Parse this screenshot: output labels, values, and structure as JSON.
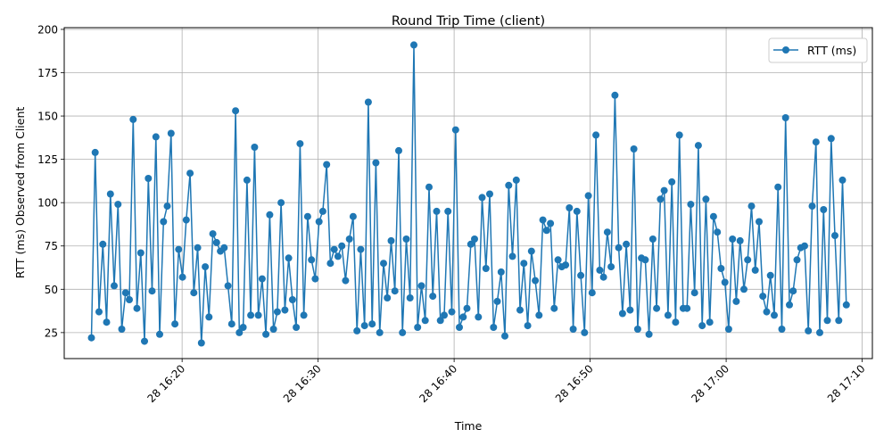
{
  "chart_data": {
    "type": "line",
    "title": "Round Trip Time (client)",
    "xlabel": "Time",
    "ylabel": "RTT (ms) Observed from Client",
    "grid": true,
    "legend_position": "top-right",
    "x_start": "28 16:13:20",
    "x_end": "28 17:08:50",
    "xlim": [
      "28 16:11:20",
      "28 17:10:45"
    ],
    "ylim": [
      10,
      201
    ],
    "x_ticks": [
      "28 16:20",
      "28 16:30",
      "28 16:40",
      "28 16:50",
      "28 17:00",
      "28 17:10"
    ],
    "y_ticks": [
      25,
      50,
      75,
      100,
      125,
      150,
      175,
      200
    ],
    "series": [
      {
        "name": "RTT (ms)",
        "color": "#1f77b4",
        "marker": "circle",
        "values": [
          22,
          129,
          37,
          76,
          31,
          105,
          52,
          99,
          27,
          48,
          44,
          148,
          39,
          71,
          20,
          114,
          49,
          138,
          24,
          89,
          98,
          140,
          30,
          73,
          57,
          90,
          117,
          48,
          74,
          19,
          63,
          34,
          82,
          77,
          72,
          74,
          52,
          30,
          153,
          25,
          28,
          113,
          35,
          132,
          35,
          56,
          24,
          93,
          27,
          37,
          100,
          38,
          68,
          44,
          28,
          134,
          35,
          92,
          67,
          56,
          89,
          95,
          122,
          65,
          73,
          69,
          75,
          55,
          79,
          92,
          26,
          73,
          29,
          158,
          30,
          123,
          25,
          65,
          45,
          78,
          49,
          130,
          25,
          79,
          45,
          191,
          28,
          52,
          32,
          109,
          46,
          95,
          32,
          35,
          95,
          37,
          142,
          28,
          34,
          39,
          76,
          79,
          34,
          103,
          62,
          105,
          28,
          43,
          60,
          23,
          110,
          69,
          113,
          38,
          65,
          29,
          72,
          55,
          35,
          90,
          84,
          88,
          39,
          67,
          63,
          64,
          97,
          27,
          95,
          58,
          25,
          104,
          48,
          139,
          61,
          57,
          83,
          63,
          162,
          74,
          36,
          76,
          38,
          131,
          27,
          68,
          67,
          24,
          79,
          39,
          102,
          107,
          35,
          112,
          31,
          139,
          39,
          39,
          99,
          48,
          133,
          29,
          102,
          31,
          92,
          83,
          62,
          54,
          27,
          79,
          43,
          78,
          50,
          67,
          98,
          61,
          89,
          46,
          37,
          58,
          35,
          109,
          27,
          149,
          41,
          49,
          67,
          74,
          75,
          26,
          98,
          135,
          25,
          96,
          32,
          137,
          81,
          32,
          113,
          41
        ]
      }
    ]
  }
}
